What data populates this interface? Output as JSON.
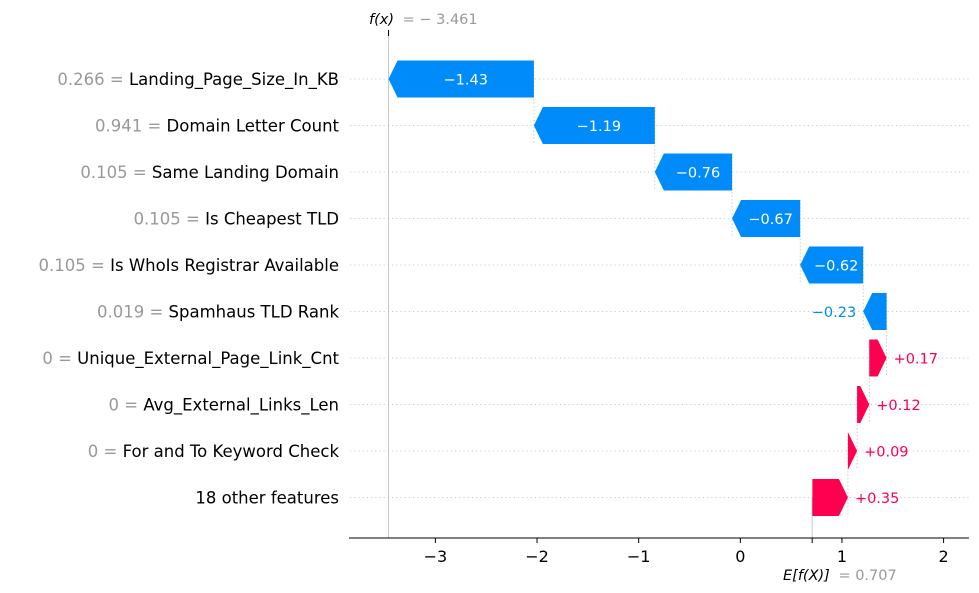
{
  "chart_data": {
    "type": "waterfall",
    "fx_label": "f(x)",
    "fx_value": "= − 3.461",
    "fx": -3.461,
    "ex_label": "E[f(X)]",
    "ex_value": "= 0.707",
    "base_value": 0.707,
    "features": [
      {
        "value": "0.266",
        "name": "Landing_Page_Size_In_KB",
        "shap": -1.43,
        "label": "−1.43"
      },
      {
        "value": "0.941",
        "name": "Domain Letter Count",
        "shap": -1.19,
        "label": "−1.19"
      },
      {
        "value": "0.105",
        "name": "Same Landing Domain",
        "shap": -0.76,
        "label": "−0.76"
      },
      {
        "value": "0.105",
        "name": "Is Cheapest TLD",
        "shap": -0.67,
        "label": "−0.67"
      },
      {
        "value": "0.105",
        "name": "Is WhoIs Registrar Available",
        "shap": -0.62,
        "label": "−0.62"
      },
      {
        "value": "0.019",
        "name": "Spamhaus TLD Rank",
        "shap": -0.23,
        "label": "−0.23"
      },
      {
        "value": "0",
        "name": "Unique_External_Page_Link_Cnt",
        "shap": 0.17,
        "label": "+0.17"
      },
      {
        "value": "0",
        "name": "Avg_External_Links_Len",
        "shap": 0.12,
        "label": "+0.12"
      },
      {
        "value": "0",
        "name": "For and To Keyword Check",
        "shap": 0.09,
        "label": "+0.09"
      },
      {
        "value": "",
        "name": "18 other features",
        "shap": 0.35,
        "label": "+0.35"
      }
    ],
    "x_ticks": [
      -3,
      -2,
      -1,
      0,
      1,
      2
    ],
    "x_tick_labels": [
      "−3",
      "−2",
      "−1",
      "0",
      "1",
      "2"
    ],
    "xlim": [
      -3.85,
      2.25
    ],
    "colors": {
      "negative": "#008bfb",
      "positive": "#ff0051",
      "grid": "#cccccc"
    }
  }
}
